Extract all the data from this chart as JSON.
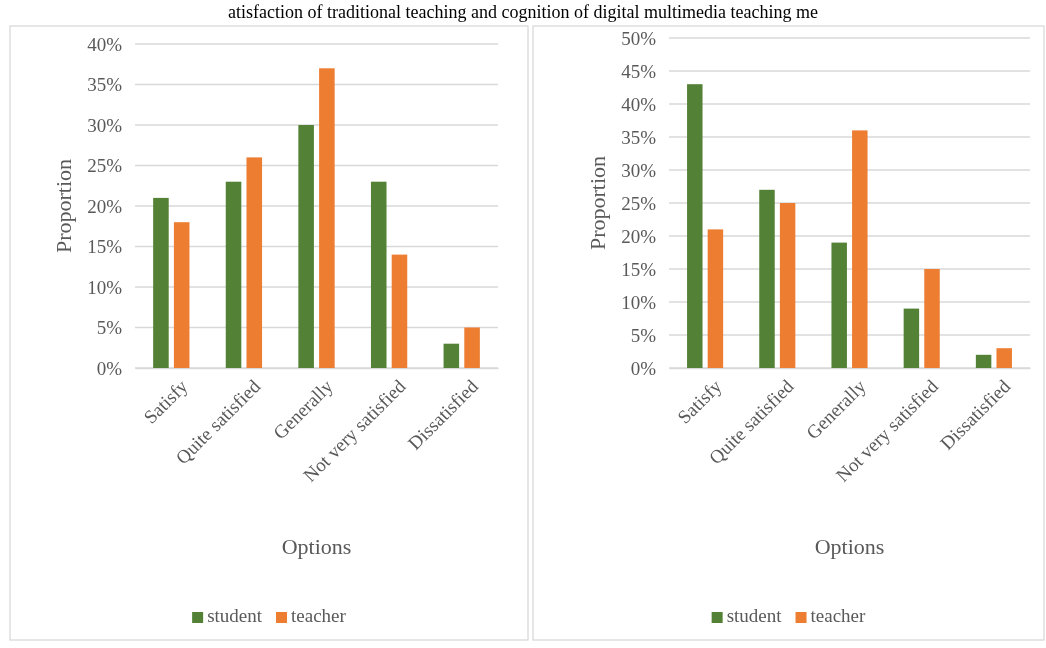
{
  "chart_data": [
    {
      "type": "bar",
      "xlabel": "Options",
      "ylabel": "Proportion",
      "annotations": [
        "atisfaction of traditional teaching and cognition of digital multimedia teaching me"
      ],
      "categories": [
        "Satisfy",
        "Quite satisfied",
        "Generally",
        "Not very satisfied",
        "Dissatisfied"
      ],
      "series": [
        {
          "name": "student",
          "color": "#538135",
          "values": [
            21,
            23,
            30,
            23,
            3
          ]
        },
        {
          "name": "teacher",
          "color": "#ed7d31",
          "values": [
            18,
            26,
            37,
            14,
            5
          ]
        }
      ],
      "ylim": [
        0,
        40
      ],
      "yticks": [
        {
          "value": 0,
          "label": "0%"
        },
        {
          "value": 5,
          "label": "5%"
        },
        {
          "value": 10,
          "label": "10%"
        },
        {
          "value": 15,
          "label": "15%"
        },
        {
          "value": 20,
          "label": "20%"
        },
        {
          "value": 25,
          "label": "25%"
        },
        {
          "value": 30,
          "label": "30%"
        },
        {
          "value": 35,
          "label": "35%"
        },
        {
          "value": 40,
          "label": "40%"
        }
      ],
      "grid": "y",
      "legend": "bottom"
    },
    {
      "type": "bar",
      "xlabel": "Options",
      "ylabel": "Proportion",
      "categories": [
        "Satisfy",
        "Quite satisfied",
        "Generally",
        "Not very satisfied",
        "Dissatisfied"
      ],
      "series": [
        {
          "name": "student",
          "color": "#538135",
          "values": [
            43,
            27,
            19,
            9,
            2
          ]
        },
        {
          "name": "teacher",
          "color": "#ed7d31",
          "values": [
            21,
            25,
            36,
            15,
            3
          ]
        }
      ],
      "ylim": [
        0,
        50
      ],
      "yticks": [
        {
          "value": 0,
          "label": "0%"
        },
        {
          "value": 5,
          "label": "5%"
        },
        {
          "value": 10,
          "label": "10%"
        },
        {
          "value": 15,
          "label": "15%"
        },
        {
          "value": 20,
          "label": "20%"
        },
        {
          "value": 25,
          "label": "25%"
        },
        {
          "value": 30,
          "label": "30%"
        },
        {
          "value": 35,
          "label": "35%"
        },
        {
          "value": 40,
          "label": "40%"
        },
        {
          "value": 45,
          "label": "45%"
        },
        {
          "value": 50,
          "label": "50%"
        }
      ],
      "grid": "y",
      "legend": "bottom"
    }
  ]
}
